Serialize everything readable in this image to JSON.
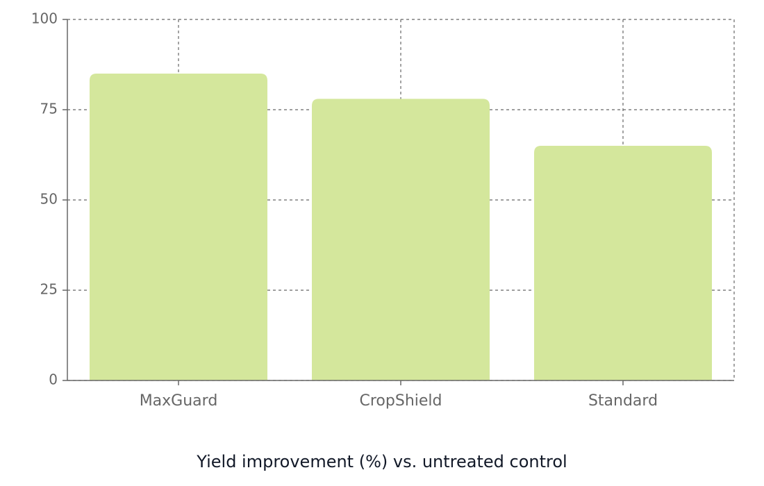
{
  "chart_data": {
    "type": "bar",
    "xlabel": "Yield improvement (%) vs. untreated control",
    "categories": [
      "MaxGuard",
      "CropShield",
      "Standard"
    ],
    "values": [
      85,
      78,
      65
    ],
    "color": "#d4e79c",
    "ylim": [
      0,
      100
    ],
    "yticks": [
      0,
      25,
      50,
      75,
      100
    ],
    "grid": true
  }
}
